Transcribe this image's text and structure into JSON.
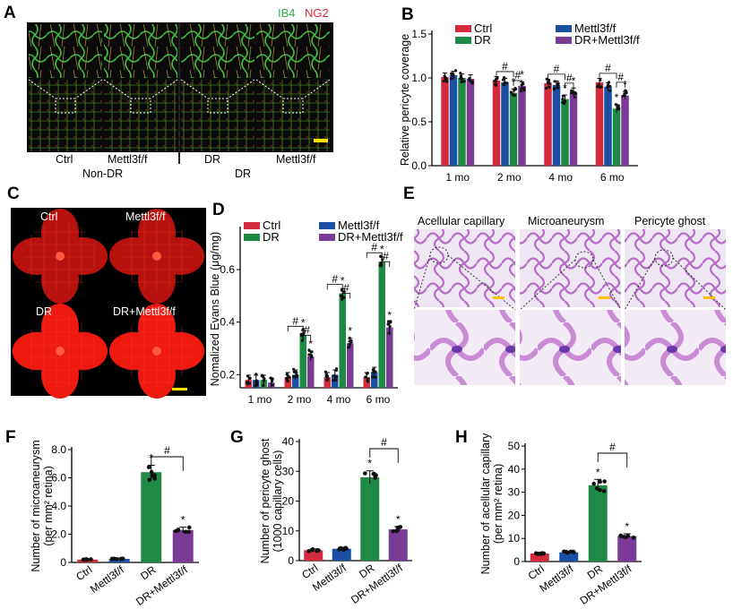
{
  "colors": {
    "ctrl": "#d42a3b",
    "mettl3": "#1a4fa3",
    "dr": "#1e8a45",
    "drm": "#7b3a96",
    "ib4": "#2db34a",
    "ng2": "#d42a3b"
  },
  "panelA": {
    "label": "A",
    "legend_ib4": "IB4",
    "legend_ng2": "NG2",
    "img_labels": [
      "Ctrl",
      "Mettl3f/f",
      "DR",
      "Mettl3f/f"
    ],
    "group_labels": [
      "Non-DR",
      "DR"
    ]
  },
  "panelC": {
    "label": "C",
    "img_labels": [
      "Ctrl",
      "Mettl3f/f",
      "DR",
      "DR+Mettl3f/f"
    ]
  },
  "panelE": {
    "label": "E",
    "titles": [
      "Acellular capillary",
      "Microaneurysm",
      "Pericyte ghost"
    ]
  },
  "chart_data": [
    {
      "id": "B",
      "type": "bar",
      "label": "B",
      "ylabel": "Relative pericyte coverage",
      "categories": [
        "1 mo",
        "2 mo",
        "4 mo",
        "6 mo"
      ],
      "ylim": [
        0,
        1.5
      ],
      "yticks": [
        0.0,
        0.5,
        1.0,
        1.5
      ],
      "series": [
        {
          "name": "Ctrl",
          "color": "#d42a3b",
          "values": [
            1.01,
            0.97,
            0.94,
            0.95
          ]
        },
        {
          "name": "Mettl3f/f",
          "color": "#1a4fa3",
          "values": [
            1.03,
            0.95,
            0.92,
            0.9
          ]
        },
        {
          "name": "DR",
          "color": "#1e8a45",
          "values": [
            1.0,
            0.83,
            0.76,
            0.65
          ]
        },
        {
          "name": "DR+Mettl3f/f",
          "color": "#7b3a96",
          "values": [
            0.99,
            0.91,
            0.84,
            0.8
          ]
        }
      ],
      "significance": {
        "star": "*",
        "hash": "#"
      }
    },
    {
      "id": "D",
      "type": "bar",
      "label": "D",
      "ylabel": "Nomalized Evans Blue (μg/mg)",
      "categories": [
        "1 mo",
        "2 mo",
        "4 mo",
        "6 mo"
      ],
      "ylim": [
        0.15,
        0.75
      ],
      "yticks": [
        0.2,
        0.4,
        0.6
      ],
      "series": [
        {
          "name": "Ctrl",
          "color": "#d42a3b",
          "values": [
            0.18,
            0.19,
            0.19,
            0.19
          ]
        },
        {
          "name": "Mettl3f/f",
          "color": "#1a4fa3",
          "values": [
            0.18,
            0.2,
            0.2,
            0.21
          ]
        },
        {
          "name": "DR",
          "color": "#1e8a45",
          "values": [
            0.18,
            0.35,
            0.51,
            0.63
          ]
        },
        {
          "name": "DR+Mettl3f/f",
          "color": "#7b3a96",
          "values": [
            0.17,
            0.27,
            0.32,
            0.38
          ]
        }
      ],
      "significance": {
        "star": "*",
        "hash": "#"
      }
    },
    {
      "id": "F",
      "type": "bar",
      "label": "F",
      "ylabel": "Number of microaneurysm (per mm² retina)",
      "categories": [
        "Ctrl",
        "Mettl3f/f",
        "DR",
        "DR+Mettl3f/f"
      ],
      "ylim": [
        0,
        8
      ],
      "yticks": [
        0,
        2.0,
        4.0,
        6.0,
        8.0
      ],
      "ytick_labels": [
        "0",
        "2.0",
        "4.0",
        "6.0",
        "8.0"
      ],
      "colors": [
        "#d42a3b",
        "#1a4fa3",
        "#1e8a45",
        "#7b3a96"
      ],
      "values": [
        0.2,
        0.25,
        6.4,
        2.3
      ],
      "significance": {
        "star": "*",
        "hash": "#"
      }
    },
    {
      "id": "G",
      "type": "bar",
      "label": "G",
      "ylabel": "Number of pericyte ghost (1000 capillary cells)",
      "categories": [
        "Ctrl",
        "Mettl3f/f",
        "DR",
        "DR+Mettl3f/f"
      ],
      "ylim": [
        0,
        40
      ],
      "yticks": [
        0,
        10,
        20,
        30,
        40
      ],
      "ytick_labels": [
        "0",
        "10",
        "20",
        "30",
        "40"
      ],
      "colors": [
        "#d42a3b",
        "#1a4fa3",
        "#1e8a45",
        "#7b3a96"
      ],
      "values": [
        3.5,
        4.0,
        28.0,
        10.5
      ],
      "significance": {
        "star": "*",
        "hash": "#"
      }
    },
    {
      "id": "H",
      "type": "bar",
      "label": "H",
      "ylabel": "Number of acellular capillary (per mm² retina)",
      "categories": [
        "Ctrl",
        "Mettl3f/f",
        "DR",
        "DR+Mettl3f/f"
      ],
      "ylim": [
        0,
        50
      ],
      "yticks": [
        0,
        10,
        20,
        30,
        40,
        50
      ],
      "ytick_labels": [
        "0",
        "10",
        "20",
        "30",
        "40",
        "50"
      ],
      "colors": [
        "#d42a3b",
        "#1a4fa3",
        "#1e8a45",
        "#7b3a96"
      ],
      "values": [
        3.5,
        4.0,
        33.0,
        11.0
      ],
      "significance": {
        "star": "*",
        "hash": "#"
      }
    }
  ]
}
